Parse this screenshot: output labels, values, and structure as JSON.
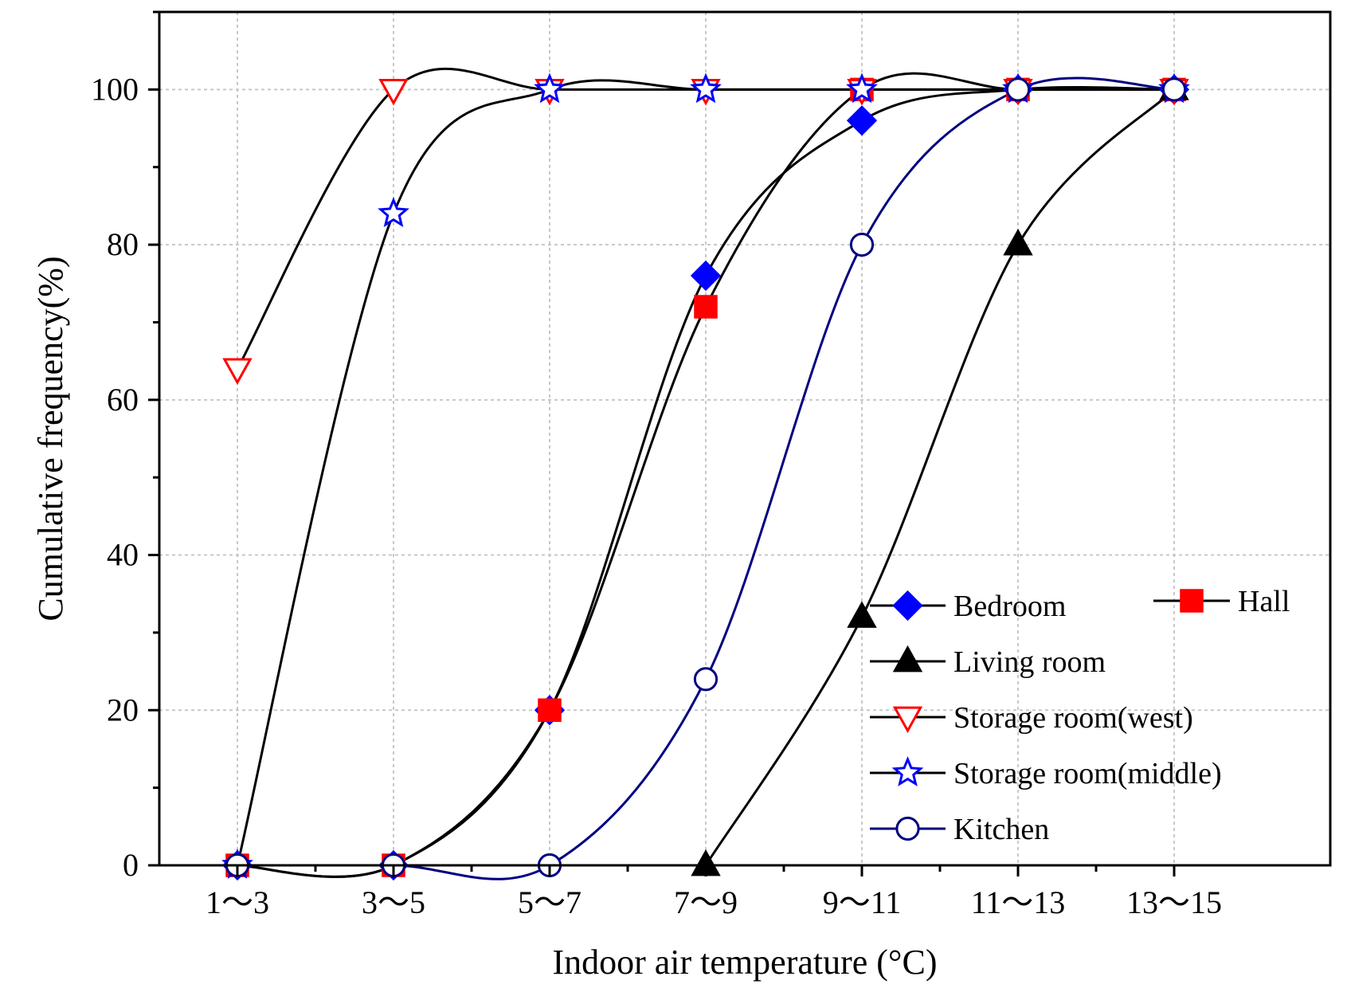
{
  "chart_data": {
    "type": "line",
    "title": "",
    "xlabel": "Indoor air temperature (°C)",
    "ylabel": "Cumulative frequency(%)",
    "categories": [
      "1～3",
      "3～5",
      "5～7",
      "7～9",
      "9～11",
      "11～13",
      "13～15"
    ],
    "ylim": [
      0,
      110
    ],
    "yticks": [
      0,
      20,
      40,
      60,
      80,
      100
    ],
    "grid": true,
    "legend_position": "bottom-right",
    "series": [
      {
        "name": "Bedroom",
        "marker": "diamond",
        "marker_color": "#0000ff",
        "marker_fill": "#0000ff",
        "line_color": "#000000",
        "values": [
          0,
          0,
          20,
          76,
          96,
          100,
          100
        ]
      },
      {
        "name": "Hall",
        "marker": "square",
        "marker_color": "#ff0000",
        "marker_fill": "#ff0000",
        "line_color": "#000000",
        "values": [
          0,
          0,
          20,
          72,
          100,
          100,
          100
        ]
      },
      {
        "name": "Living room",
        "marker": "triangle-up",
        "marker_color": "#000000",
        "marker_fill": "#000000",
        "line_color": "#000000",
        "values": [
          null,
          null,
          null,
          0,
          32,
          80,
          100
        ]
      },
      {
        "name": "Storage room(west)",
        "marker": "triangle-down",
        "marker_color": "#ff0000",
        "marker_fill": "#ffffff",
        "line_color": "#000000",
        "values": [
          64,
          100,
          100,
          100,
          100,
          100,
          100
        ]
      },
      {
        "name": "Storage room(middle)",
        "marker": "star",
        "marker_color": "#0000ff",
        "marker_fill": "#ffffff",
        "line_color": "#000000",
        "values": [
          0,
          84,
          100,
          100,
          100,
          100,
          100
        ]
      },
      {
        "name": "Kitchen",
        "marker": "circle",
        "marker_color": "#000080",
        "marker_fill": "#ffffff",
        "line_color": "#000080",
        "values": [
          0,
          0,
          0,
          24,
          80,
          100,
          100
        ]
      }
    ]
  }
}
